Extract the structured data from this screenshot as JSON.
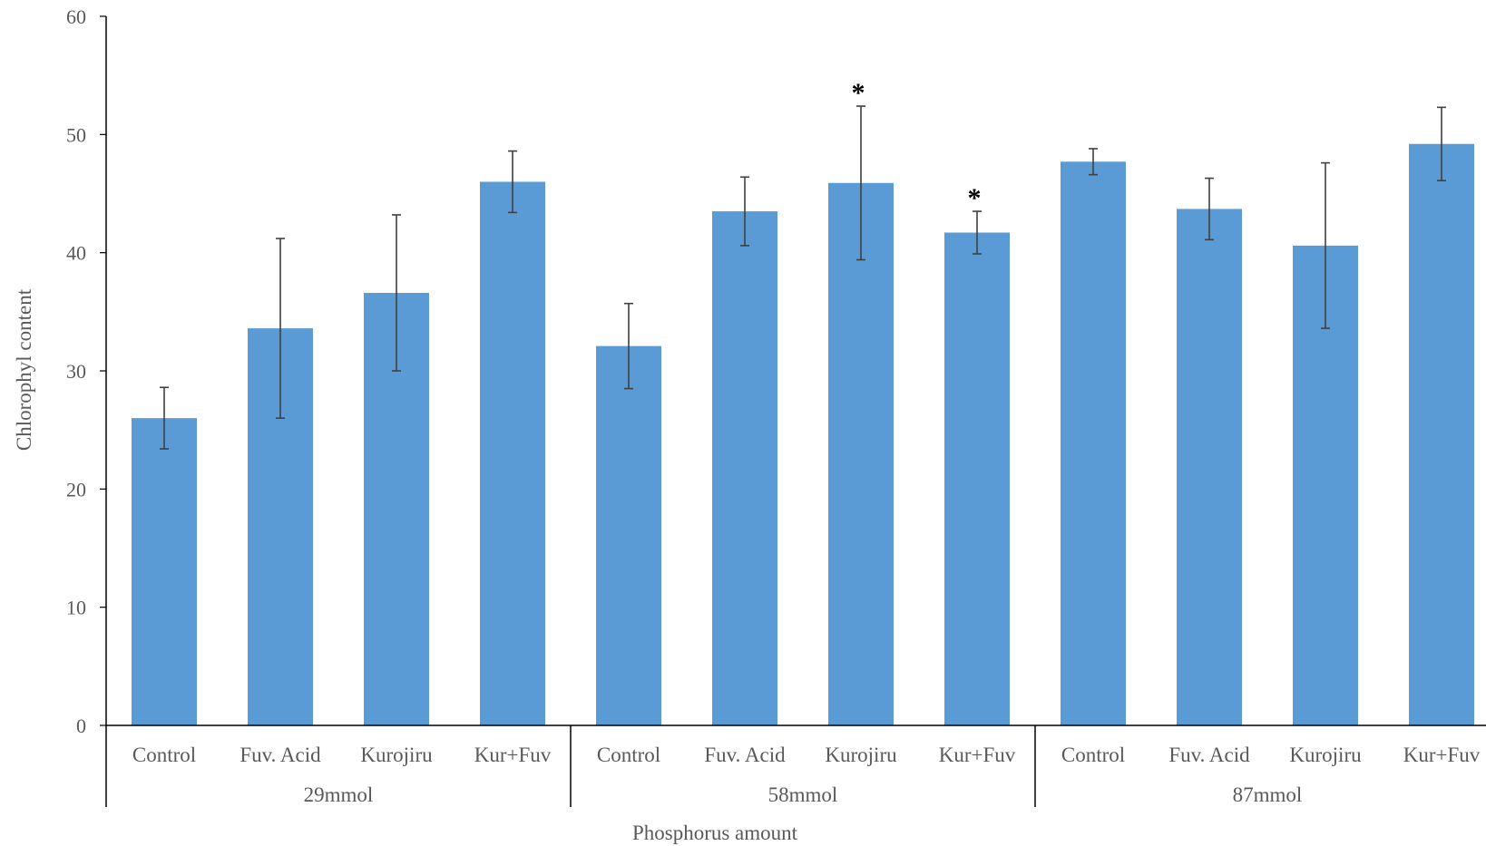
{
  "chart_data": {
    "type": "bar",
    "title": "",
    "xlabel": "Phosphorus amount",
    "ylabel": "Chlorophyl content",
    "ylim": [
      0,
      60
    ],
    "yticks": [
      0,
      10,
      20,
      30,
      40,
      50,
      60
    ],
    "grid": false,
    "legend": "none",
    "color": "#5b9bd5",
    "groups": [
      {
        "label": "29mmol",
        "bars": [
          {
            "category": "Control",
            "value": 26.0,
            "error": 2.6,
            "marker": ""
          },
          {
            "category": "Fuv. Acid",
            "value": 33.6,
            "error": 7.6,
            "marker": ""
          },
          {
            "category": "Kurojiru",
            "value": 36.6,
            "error": 6.6,
            "marker": ""
          },
          {
            "category": "Kur+Fuv",
            "value": 46.0,
            "error": 2.6,
            "marker": ""
          }
        ]
      },
      {
        "label": "58mmol",
        "bars": [
          {
            "category": "Control",
            "value": 32.1,
            "error": 3.6,
            "marker": ""
          },
          {
            "category": "Fuv. Acid",
            "value": 43.5,
            "error": 2.9,
            "marker": ""
          },
          {
            "category": "Kurojiru",
            "value": 45.9,
            "error": 6.5,
            "marker": "*"
          },
          {
            "category": "Kur+Fuv",
            "value": 41.7,
            "error": 1.8,
            "marker": "*"
          }
        ]
      },
      {
        "label": "87mmol",
        "bars": [
          {
            "category": "Control",
            "value": 47.7,
            "error": 1.1,
            "marker": ""
          },
          {
            "category": "Fuv. Acid",
            "value": 43.7,
            "error": 2.6,
            "marker": ""
          },
          {
            "category": "Kurojiru",
            "value": 40.6,
            "error": 7.0,
            "marker": ""
          },
          {
            "category": "Kur+Fuv",
            "value": 49.2,
            "error": 3.1,
            "marker": ""
          }
        ]
      }
    ]
  }
}
